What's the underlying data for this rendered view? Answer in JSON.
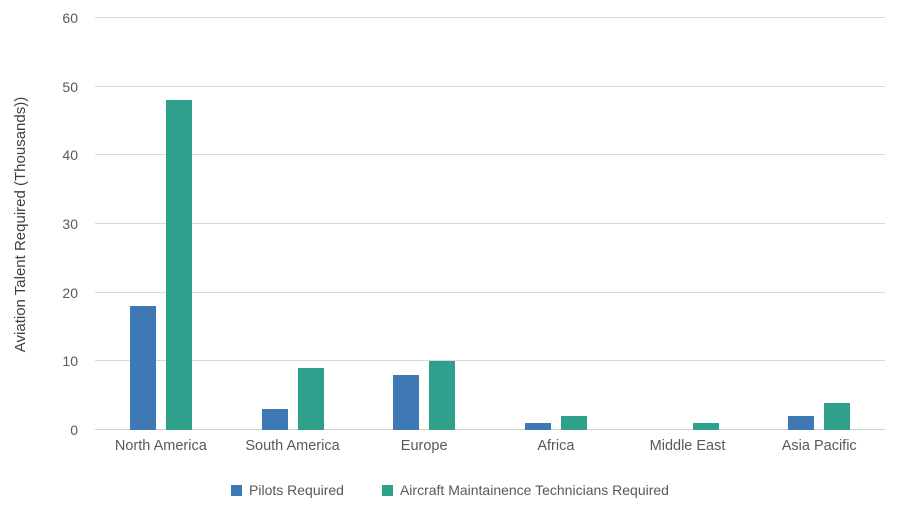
{
  "chart_data": {
    "type": "bar",
    "title": "",
    "xlabel": "",
    "ylabel": "Aviation Talent Required (Thousands))",
    "categories": [
      "North America",
      "South America",
      "Europe",
      "Africa",
      "Middle East",
      "Asia Pacific"
    ],
    "series": [
      {
        "name": "Pilots Required",
        "color": "#3e79b6",
        "values": [
          18,
          3,
          8,
          1,
          0,
          2
        ]
      },
      {
        "name": "Aircraft Maintainence Technicians Required",
        "color": "#2fa08b",
        "values": [
          48,
          9,
          10,
          2,
          1,
          4
        ]
      }
    ],
    "ylim": [
      0,
      60
    ],
    "ytick_step": 10,
    "grid": true,
    "legend_position": "bottom",
    "colors": {
      "gridline": "#d9d9d9",
      "text": "#595959"
    }
  }
}
